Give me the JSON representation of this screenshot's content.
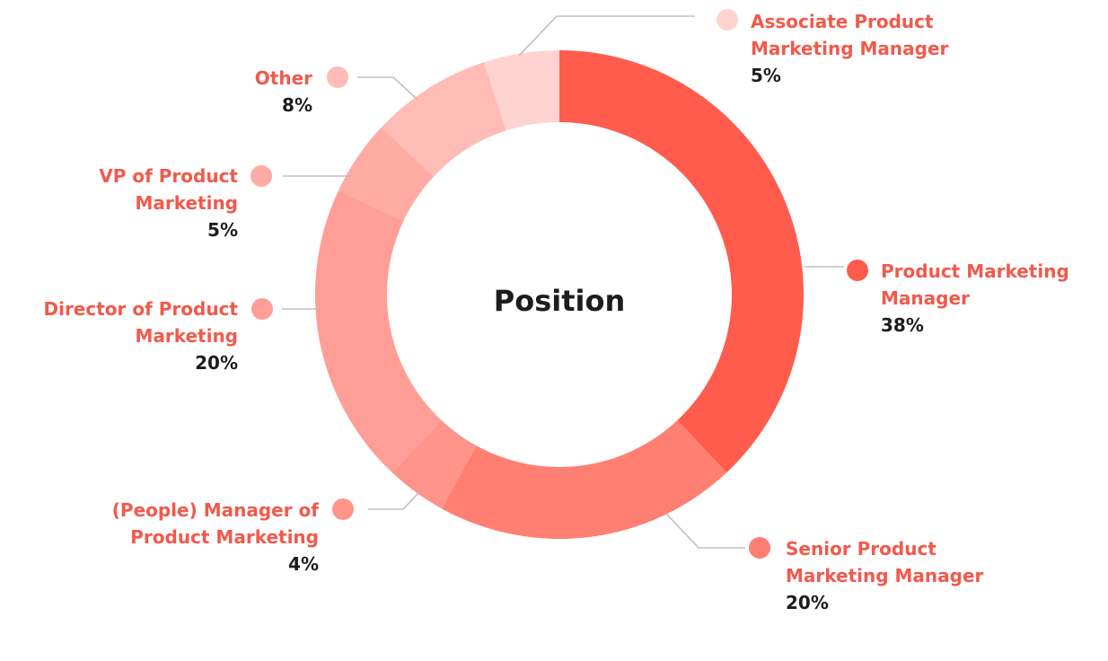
{
  "chart_data": {
    "type": "pie",
    "title": "Position",
    "unit": "%",
    "slices": [
      {
        "label": [
          "Product Marketing",
          "Manager"
        ],
        "value": 38,
        "value_label": "38%",
        "color": "#ff5c4d"
      },
      {
        "label": [
          "Senior Product",
          "Marketing Manager"
        ],
        "value": 20,
        "value_label": "20%",
        "color": "#ff7f72"
      },
      {
        "label": [
          "(People) Manager of",
          "Product Marketing"
        ],
        "value": 4,
        "value_label": "4%",
        "color": "#ff948a"
      },
      {
        "label": [
          "Director of Product",
          "Marketing"
        ],
        "value": 20,
        "value_label": "20%",
        "color": "#ff9e96"
      },
      {
        "label": [
          "VP of Product",
          "Marketing"
        ],
        "value": 5,
        "value_label": "5%",
        "color": "#ffaba4"
      },
      {
        "label": [
          "Other"
        ],
        "value": 8,
        "value_label": "8%",
        "color": "#ffbcb6"
      },
      {
        "label": [
          "Associate Product",
          "Marketing Manager"
        ],
        "value": 5,
        "value_label": "5%",
        "color": "#ffd3cf"
      }
    ]
  }
}
